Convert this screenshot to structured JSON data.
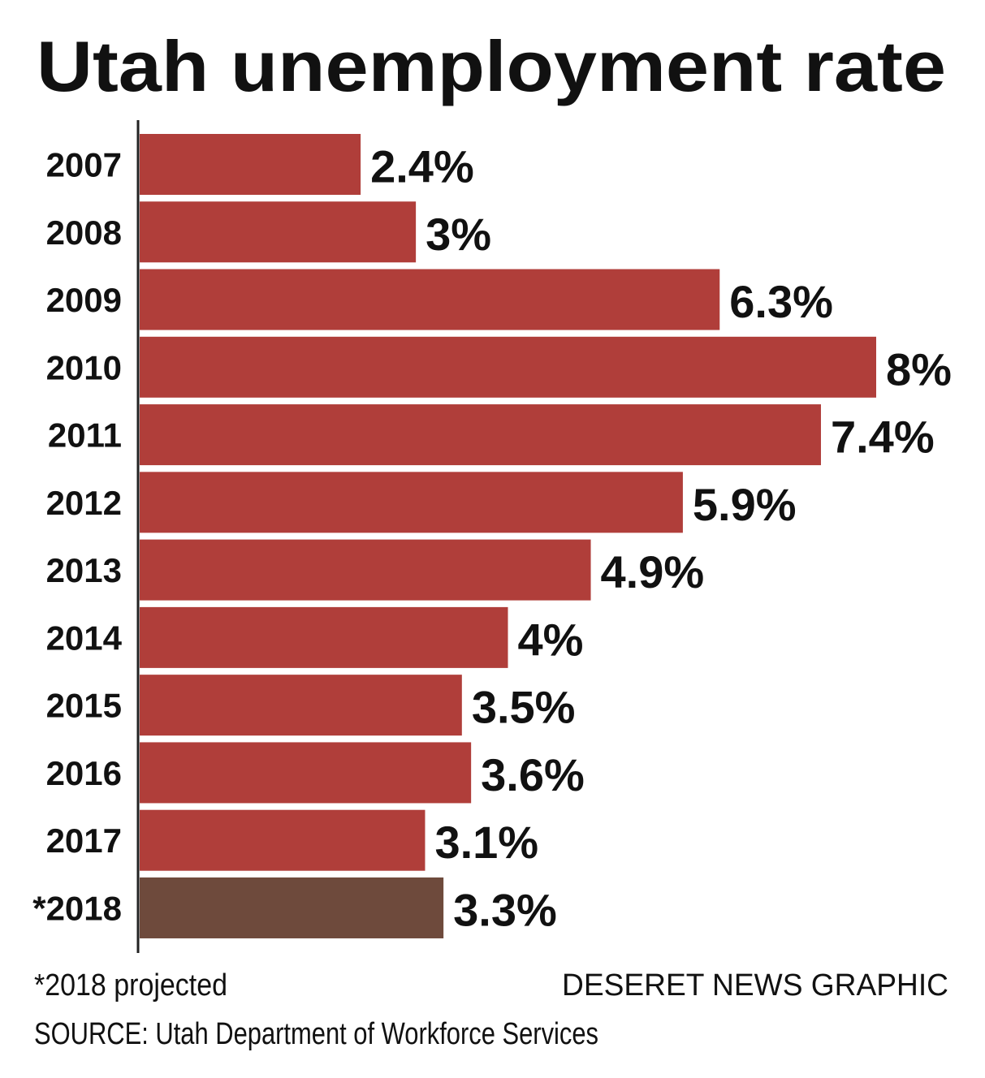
{
  "chart_data": {
    "type": "hbar",
    "title": "Utah unemployment rate",
    "categories": [
      "2007",
      "2008",
      "2009",
      "2010",
      "2011",
      "2012",
      "2013",
      "2014",
      "2015",
      "2016",
      "2017",
      "*2018"
    ],
    "values": [
      2.4,
      3,
      6.3,
      8,
      7.4,
      5.9,
      4.9,
      4,
      3.5,
      3.6,
      3.1,
      3.3
    ],
    "value_labels": [
      "2.4%",
      "3%",
      "6.3%",
      "8%",
      "7.4%",
      "5.9%",
      "4.9%",
      "4%",
      "3.5%",
      "3.6%",
      "3.1%",
      "3.3%"
    ],
    "colors": [
      "#b03e3a",
      "#b03e3a",
      "#b03e3a",
      "#b03e3a",
      "#b03e3a",
      "#b03e3a",
      "#b03e3a",
      "#b03e3a",
      "#b03e3a",
      "#b03e3a",
      "#b03e3a",
      "#6e4a3c"
    ],
    "xlim": [
      0,
      8
    ],
    "note": "*2018 projected",
    "credit": "DESERET NEWS GRAPHIC",
    "source": "SOURCE: Utah Department of Workforce Services"
  }
}
